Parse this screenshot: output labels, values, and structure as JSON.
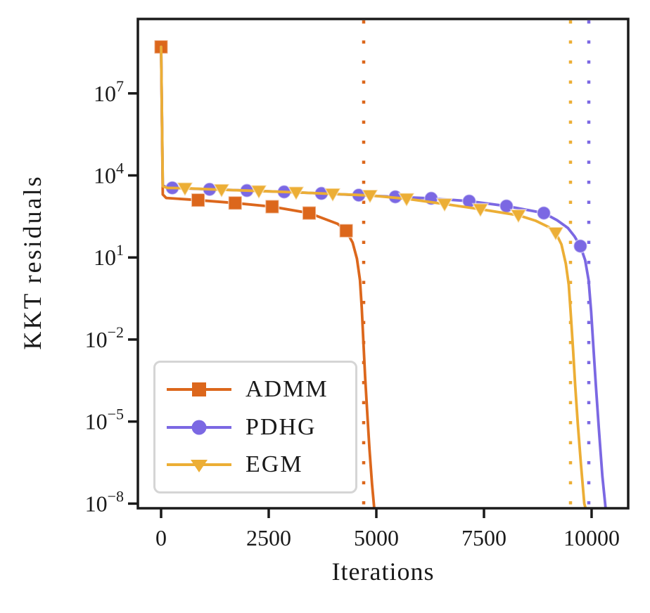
{
  "chart_data": {
    "type": "line",
    "title": "",
    "xlabel": "Iterations",
    "ylabel": "KKT residuals",
    "x_ticks": [
      0,
      2500,
      5000,
      7500,
      10000
    ],
    "y_tick_exponents": [
      7,
      4,
      1,
      -2,
      -5,
      -8
    ],
    "xlim": [
      -539,
      10850
    ],
    "ylim_log10": [
      -8.17,
      9.72
    ],
    "yscale": "log",
    "grid": false,
    "legend_position": "lower-left",
    "axis_color": "#1a1a1a",
    "legend_border_color": "#d5d5d5",
    "series": [
      {
        "name": "ADMM",
        "color": "#dc671c",
        "marker": "square",
        "convergence_vline_x": 4706,
        "line": [
          [
            0,
            500000000.0
          ],
          [
            40,
            2000
          ],
          [
            120,
            1500
          ],
          [
            860,
            1250
          ],
          [
            1720,
            980
          ],
          [
            2580,
            720
          ],
          [
            3440,
            420
          ],
          [
            4100,
            170
          ],
          [
            4300,
            95
          ],
          [
            4450,
            35
          ],
          [
            4550,
            9
          ],
          [
            4620,
            1.5
          ],
          [
            4660,
            0.15
          ],
          [
            4700,
            0.008
          ],
          [
            4740,
            0.0004
          ],
          [
            4790,
            2e-05
          ],
          [
            4840,
            1e-06
          ],
          [
            4900,
            5e-08
          ],
          [
            4965,
            4e-09
          ]
        ],
        "markers": [
          [
            0,
            500000000.0
          ],
          [
            860,
            1250
          ],
          [
            1720,
            980
          ],
          [
            2580,
            720
          ],
          [
            3440,
            420
          ],
          [
            4300,
            95
          ]
        ]
      },
      {
        "name": "PDHG",
        "color": "#7b68e3",
        "marker": "circle",
        "convergence_vline_x": 9935,
        "line": [
          [
            0,
            500000000.0
          ],
          [
            40,
            4200
          ],
          [
            150,
            3700
          ],
          [
            261,
            3500
          ],
          [
            1127,
            3100
          ],
          [
            1993,
            2800
          ],
          [
            2859,
            2500
          ],
          [
            3725,
            2200
          ],
          [
            4592,
            1900
          ],
          [
            5441,
            1650
          ],
          [
            6275,
            1450
          ],
          [
            7157,
            1150
          ],
          [
            8023,
            760
          ],
          [
            8890,
            420
          ],
          [
            9200,
            230
          ],
          [
            9450,
            120
          ],
          [
            9600,
            60
          ],
          [
            9739,
            26
          ],
          [
            9850,
            8
          ],
          [
            9930,
            1.5
          ],
          [
            9990,
            0.1
          ],
          [
            10040,
            0.006
          ],
          [
            10100,
            0.0002
          ],
          [
            10170,
            5e-06
          ],
          [
            10250,
            1e-07
          ],
          [
            10340,
            4e-09
          ]
        ],
        "markers": [
          [
            261,
            3500
          ],
          [
            1127,
            3100
          ],
          [
            1993,
            2800
          ],
          [
            2859,
            2500
          ],
          [
            3725,
            2200
          ],
          [
            4592,
            1900
          ],
          [
            5441,
            1650
          ],
          [
            6275,
            1450
          ],
          [
            7157,
            1150
          ],
          [
            8023,
            760
          ],
          [
            8890,
            420
          ],
          [
            9739,
            26
          ]
        ]
      },
      {
        "name": "EGM",
        "color": "#ecae35",
        "marker": "triangle-down",
        "convergence_vline_x": 9510,
        "line": [
          [
            0,
            500000000.0
          ],
          [
            40,
            4000
          ],
          [
            150,
            3500
          ],
          [
            555,
            3400
          ],
          [
            1405,
            3000
          ],
          [
            2271,
            2700
          ],
          [
            3137,
            2400
          ],
          [
            3987,
            2100
          ],
          [
            4853,
            1850
          ],
          [
            5703,
            1400
          ],
          [
            6585,
            900
          ],
          [
            7418,
            580
          ],
          [
            8300,
            350
          ],
          [
            8700,
            220
          ],
          [
            9000,
            130
          ],
          [
            9167,
            80
          ],
          [
            9300,
            30
          ],
          [
            9400,
            6
          ],
          [
            9470,
            1
          ],
          [
            9520,
            0.07
          ],
          [
            9570,
            0.004
          ],
          [
            9620,
            0.0002
          ],
          [
            9680,
            8e-06
          ],
          [
            9750,
            3e-07
          ],
          [
            9830,
            1e-08
          ],
          [
            9900,
            4e-09
          ]
        ],
        "markers": [
          [
            555,
            3400
          ],
          [
            1405,
            3000
          ],
          [
            2271,
            2700
          ],
          [
            3137,
            2400
          ],
          [
            3987,
            2100
          ],
          [
            4853,
            1850
          ],
          [
            5703,
            1400
          ],
          [
            6585,
            900
          ],
          [
            7418,
            580
          ],
          [
            8300,
            350
          ],
          [
            9167,
            80
          ]
        ]
      }
    ]
  }
}
